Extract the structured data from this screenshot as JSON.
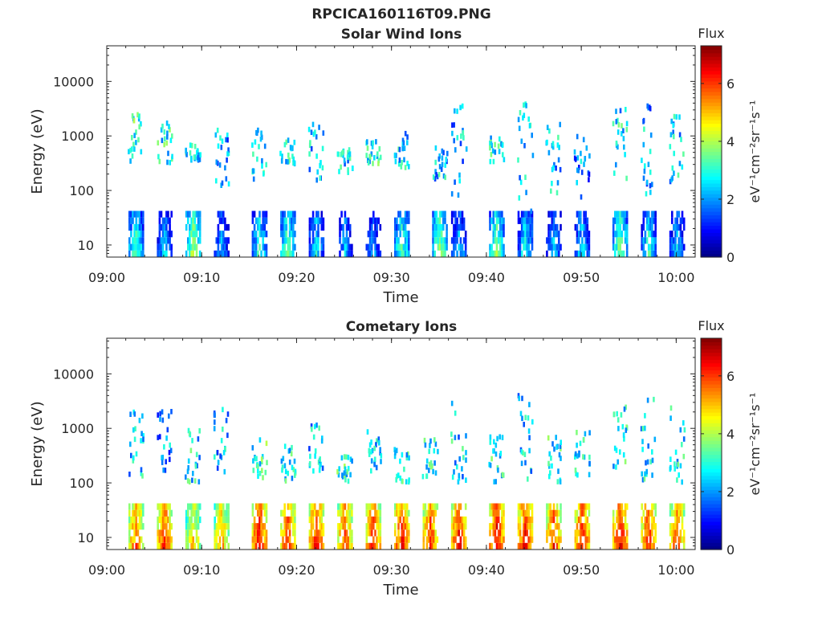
{
  "figure": {
    "title": "RPCICA160116T09.PNG"
  },
  "colors": {
    "axis": "#262626",
    "colormap": [
      "#00007f",
      "#0000ff",
      "#007fff",
      "#00ffff",
      "#7fff7f",
      "#ffff00",
      "#ff7f00",
      "#ff0000",
      "#7f0000"
    ]
  },
  "chart_data": [
    {
      "type": "heatmap",
      "title": "Solar Wind Ions",
      "xlabel": "Time",
      "ylabel": "Energy (eV)",
      "y_scale": "log",
      "xlim": [
        "09:00",
        "10:02"
      ],
      "ylim": [
        6,
        45000
      ],
      "x_ticks": [
        "09:00",
        "09:10",
        "09:20",
        "09:30",
        "09:40",
        "09:50",
        "10:00"
      ],
      "y_ticks": [
        {
          "value": 10,
          "label": "10"
        },
        {
          "value": 100,
          "label": "100"
        },
        {
          "value": 1000,
          "label": "1000"
        },
        {
          "value": 10000,
          "label": "10000"
        }
      ],
      "colorbar": {
        "title": "Flux",
        "label": "eV⁻¹cm⁻²sr⁻¹s⁻¹",
        "range": [
          0,
          7.3
        ],
        "ticks": [
          0,
          2,
          4,
          6
        ]
      },
      "bursts": [
        {
          "time": "09:03",
          "low_flux": 3.2,
          "high_energy": [
            250,
            2400
          ],
          "high_flux": 3.0
        },
        {
          "time": "09:06",
          "low_flux": 2.4,
          "high_energy": [
            300,
            2200
          ],
          "high_flux": 2.8
        },
        {
          "time": "09:09",
          "low_flux": 3.8,
          "high_energy": [
            350,
            700
          ],
          "high_flux": 2.6
        },
        {
          "time": "09:12",
          "low_flux": 2.0,
          "high_energy": [
            120,
            1500
          ],
          "high_flux": 2.2
        },
        {
          "time": "09:16",
          "low_flux": 3.0,
          "high_energy": [
            150,
            1300
          ],
          "high_flux": 2.5
        },
        {
          "time": "09:19",
          "low_flux": 3.4,
          "high_energy": [
            300,
            900
          ],
          "high_flux": 2.7
        },
        {
          "time": "09:22",
          "low_flux": 2.6,
          "high_energy": [
            150,
            1700
          ],
          "high_flux": 2.4
        },
        {
          "time": "09:25",
          "low_flux": 2.2,
          "high_energy": [
            200,
            600
          ],
          "high_flux": 2.6
        },
        {
          "time": "09:28",
          "low_flux": 2.0,
          "high_energy": [
            300,
            800
          ],
          "high_flux": 2.8
        },
        {
          "time": "09:31",
          "low_flux": 3.2,
          "high_energy": [
            250,
            1100
          ],
          "high_flux": 2.5
        },
        {
          "time": "09:35",
          "low_flux": 3.6,
          "high_energy": [
            150,
            600
          ],
          "high_flux": 2.3
        },
        {
          "time": "09:37",
          "low_flux": 2.4,
          "high_energy": [
            80,
            3500
          ],
          "high_flux": 2.2
        },
        {
          "time": "09:41",
          "low_flux": 3.5,
          "high_energy": [
            300,
            900
          ],
          "high_flux": 2.6
        },
        {
          "time": "09:44",
          "low_flux": 2.8,
          "high_energy": [
            40,
            4000
          ],
          "high_flux": 2.4
        },
        {
          "time": "09:47",
          "low_flux": 2.2,
          "high_energy": [
            80,
            1800
          ],
          "high_flux": 2.3
        },
        {
          "time": "09:50",
          "low_flux": 2.5,
          "high_energy": [
            70,
            1000
          ],
          "high_flux": 2.0
        },
        {
          "time": "09:54",
          "low_flux": 3.6,
          "high_energy": [
            150,
            3500
          ],
          "high_flux": 2.6
        },
        {
          "time": "09:57",
          "low_flux": 3.0,
          "high_energy": [
            70,
            4000
          ],
          "high_flux": 2.2
        },
        {
          "time": "10:00",
          "low_flux": 2.4,
          "high_energy": [
            100,
            2500
          ],
          "high_flux": 2.4
        }
      ]
    },
    {
      "type": "heatmap",
      "title": "Cometary Ions",
      "xlabel": "Time",
      "ylabel": "Energy (eV)",
      "y_scale": "log",
      "xlim": [
        "09:00",
        "10:02"
      ],
      "ylim": [
        6,
        45000
      ],
      "x_ticks": [
        "09:00",
        "09:10",
        "09:20",
        "09:30",
        "09:40",
        "09:50",
        "10:00"
      ],
      "y_ticks": [
        {
          "value": 10,
          "label": "10"
        },
        {
          "value": 100,
          "label": "100"
        },
        {
          "value": 1000,
          "label": "1000"
        },
        {
          "value": 10000,
          "label": "10000"
        }
      ],
      "colorbar": {
        "title": "Flux",
        "label": "eV⁻¹cm⁻²sr⁻¹s⁻¹",
        "range": [
          0,
          7.3
        ],
        "ticks": [
          0,
          2,
          4,
          6
        ]
      },
      "bursts": [
        {
          "time": "09:03",
          "low_flux": 5.6,
          "high_energy": [
            120,
            2400
          ],
          "high_flux": 2.4
        },
        {
          "time": "09:06",
          "low_flux": 6.0,
          "high_energy": [
            150,
            2100
          ],
          "high_flux": 2.0
        },
        {
          "time": "09:09",
          "low_flux": 5.0,
          "high_energy": [
            100,
            900
          ],
          "high_flux": 2.6
        },
        {
          "time": "09:12",
          "low_flux": 5.2,
          "high_energy": [
            150,
            2200
          ],
          "high_flux": 2.2
        },
        {
          "time": "09:16",
          "low_flux": 6.3,
          "high_energy": [
            120,
            600
          ],
          "high_flux": 3.0
        },
        {
          "time": "09:19",
          "low_flux": 6.0,
          "high_energy": [
            100,
            500
          ],
          "high_flux": 2.8
        },
        {
          "time": "09:22",
          "low_flux": 6.1,
          "high_energy": [
            150,
            1300
          ],
          "high_flux": 2.4
        },
        {
          "time": "09:25",
          "low_flux": 5.8,
          "high_energy": [
            100,
            300
          ],
          "high_flux": 2.9
        },
        {
          "time": "09:28",
          "low_flux": 6.0,
          "high_energy": [
            150,
            900
          ],
          "high_flux": 2.6
        },
        {
          "time": "09:31",
          "low_flux": 6.2,
          "high_energy": [
            100,
            400
          ],
          "high_flux": 2.8
        },
        {
          "time": "09:34",
          "low_flux": 6.0,
          "high_energy": [
            120,
            600
          ],
          "high_flux": 2.7
        },
        {
          "time": "09:37",
          "low_flux": 6.2,
          "high_energy": [
            100,
            3000
          ],
          "high_flux": 2.5
        },
        {
          "time": "09:41",
          "low_flux": 6.4,
          "high_energy": [
            100,
            800
          ],
          "high_flux": 2.7
        },
        {
          "time": "09:44",
          "low_flux": 6.2,
          "high_energy": [
            100,
            4000
          ],
          "high_flux": 2.4
        },
        {
          "time": "09:47",
          "low_flux": 6.0,
          "high_energy": [
            100,
            700
          ],
          "high_flux": 2.8
        },
        {
          "time": "09:50",
          "low_flux": 6.2,
          "high_energy": [
            100,
            900
          ],
          "high_flux": 2.6
        },
        {
          "time": "09:54",
          "low_flux": 6.3,
          "high_energy": [
            100,
            3500
          ],
          "high_flux": 2.7
        },
        {
          "time": "09:57",
          "low_flux": 6.1,
          "high_energy": [
            100,
            4000
          ],
          "high_flux": 2.5
        },
        {
          "time": "10:00",
          "low_flux": 5.8,
          "high_energy": [
            100,
            2500
          ],
          "high_flux": 2.7
        }
      ]
    }
  ]
}
